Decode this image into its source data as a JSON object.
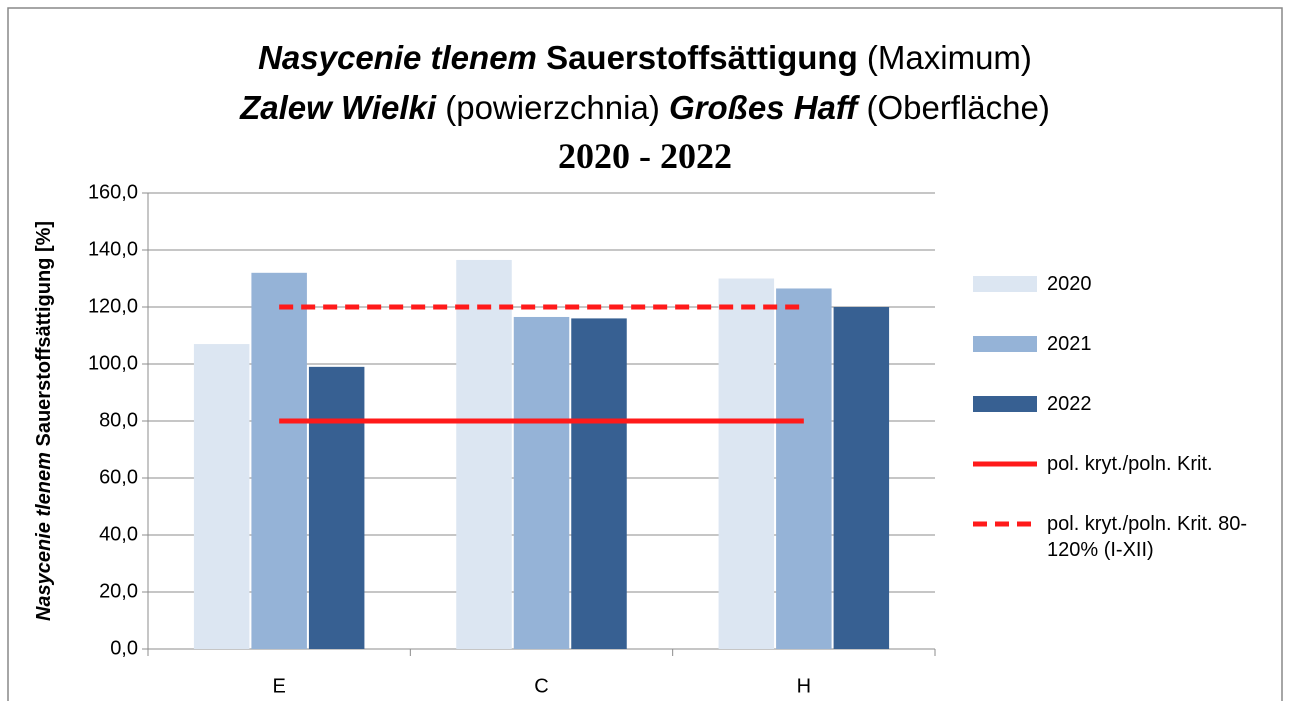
{
  "chart_data": {
    "type": "bar",
    "title": [
      [
        "Nasycenie tlenem",
        "Sauerstoffsättigung",
        "(Maximum)"
      ],
      [
        "Zalew Wielki",
        "(powierzchnia)",
        "Großes Haff",
        "(Oberfläche)"
      ],
      [
        "2020 - 2022"
      ]
    ],
    "ylabel": [
      "Nasycenie tlenem",
      "Sauerstoffsättigung [%]"
    ],
    "categories": [
      "E",
      "C",
      "H"
    ],
    "series": [
      {
        "name": "2020",
        "color": "#dce6f2",
        "values": [
          107,
          136.5,
          130
        ]
      },
      {
        "name": "2021",
        "color": "#95b3d7",
        "values": [
          132,
          116.5,
          126.5
        ]
      },
      {
        "name": "2022",
        "color": "#376092",
        "values": [
          99,
          116,
          120
        ]
      },
      {
        "name": "pol. kryt./poln. Krit.",
        "type": "line",
        "color": "#ff1a1a",
        "values": [
          80,
          80,
          80
        ]
      },
      {
        "name": "pol. kryt./poln. Krit. 80-120% (I-XII)",
        "type": "line",
        "dashed": true,
        "color": "#ff1a1a",
        "values": [
          120,
          120,
          120
        ]
      }
    ],
    "ylim": [
      0,
      160
    ],
    "yticks": [
      {
        "value": 0,
        "label": "0,0"
      },
      {
        "value": 20,
        "label": "20,0"
      },
      {
        "value": 40,
        "label": "40,0"
      },
      {
        "value": 60,
        "label": "60,0"
      },
      {
        "value": 80,
        "label": "80,0"
      },
      {
        "value": 100,
        "label": "100,0"
      },
      {
        "value": 120,
        "label": "120,0"
      },
      {
        "value": 140,
        "label": "140,0"
      },
      {
        "value": 160,
        "label": "160,0"
      }
    ],
    "grid": true,
    "legend": "right"
  }
}
